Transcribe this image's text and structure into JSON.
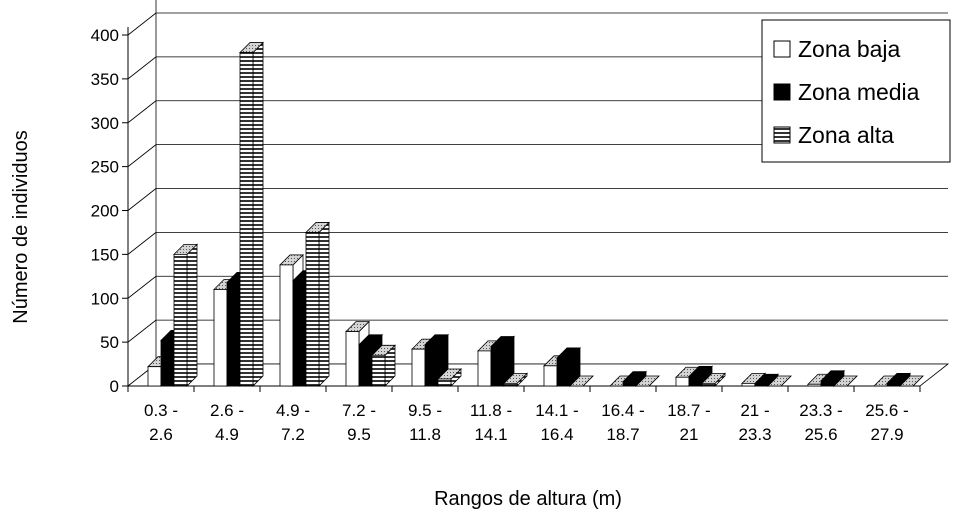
{
  "chart_data": {
    "type": "bar",
    "title": "",
    "xlabel": "Rangos de altura (m)",
    "ylabel": "Número de individuos",
    "ylim": [
      0,
      400
    ],
    "yticks": [
      0,
      50,
      100,
      150,
      200,
      250,
      300,
      350,
      400
    ],
    "grid": true,
    "legend_position": "top-right",
    "categories": [
      [
        "0.3 -",
        "2.6"
      ],
      [
        "2.6 -",
        "4.9"
      ],
      [
        "4.9 -",
        "7.2"
      ],
      [
        "7.2 -",
        "9.5"
      ],
      [
        "9.5 -",
        "11.8"
      ],
      [
        "11.8 -",
        "14.1"
      ],
      [
        "14.1 -",
        "16.4"
      ],
      [
        "16.4 -",
        "18.7"
      ],
      [
        "18.7 -",
        "21"
      ],
      [
        "21 -",
        "23.3"
      ],
      [
        "23.3 -",
        "25.6"
      ],
      [
        "25.6 -",
        "27.9"
      ]
    ],
    "series": [
      {
        "name": "Zona baja",
        "pattern": "white",
        "values": [
          22,
          110,
          138,
          62,
          42,
          40,
          23,
          0,
          10,
          3,
          2,
          0
        ]
      },
      {
        "name": "Zona media",
        "pattern": "black",
        "values": [
          52,
          118,
          120,
          47,
          47,
          45,
          32,
          5,
          11,
          2,
          6,
          3
        ]
      },
      {
        "name": "Zona alta",
        "pattern": "hatched",
        "values": [
          150,
          380,
          175,
          35,
          8,
          3,
          0,
          0,
          3,
          0,
          0,
          0
        ]
      }
    ]
  }
}
